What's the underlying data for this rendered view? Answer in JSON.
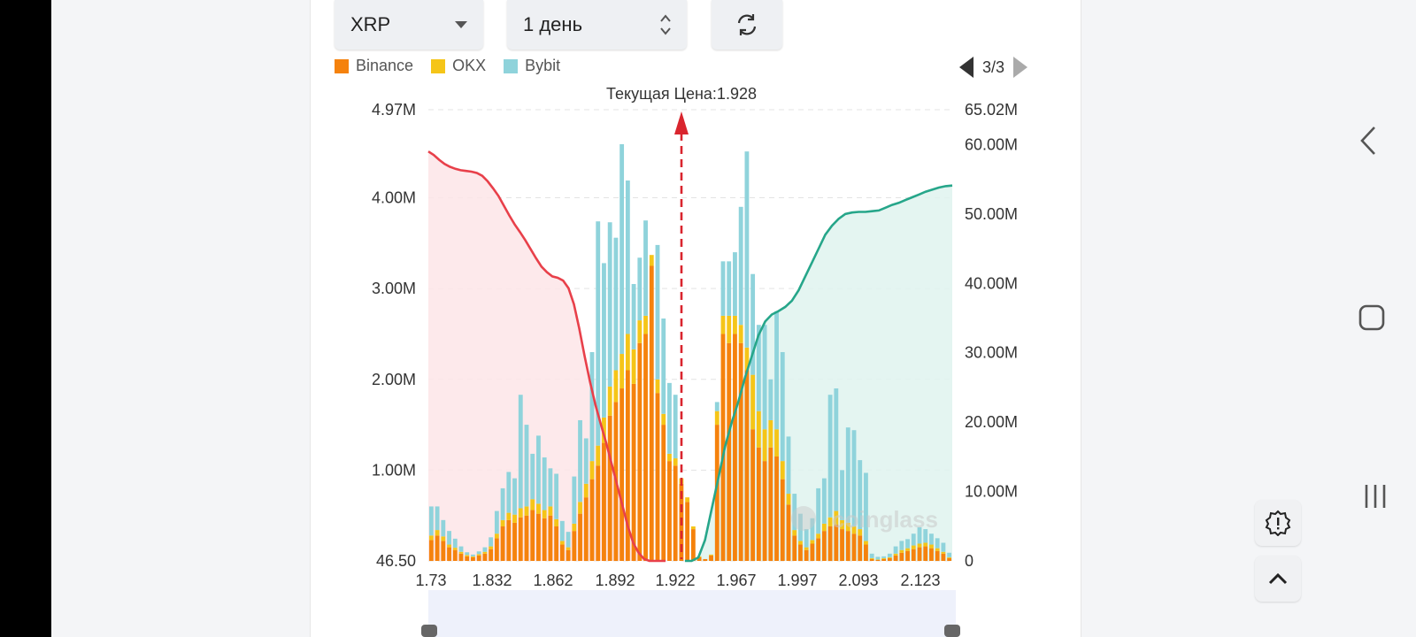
{
  "controls": {
    "coin_select": "XRP",
    "period_select": "1 день"
  },
  "pager": {
    "label": "3/3"
  },
  "watermark": "coinglass",
  "chart_data": {
    "type": "bar",
    "current_price_label": "Текущая Цена:1.928",
    "current_price": 1.928,
    "series": [
      {
        "name": "Binance",
        "color": "#f5820d"
      },
      {
        "name": "OKX",
        "color": "#f5c518"
      },
      {
        "name": "Bybit",
        "color": "#8fd3db"
      }
    ],
    "x_ticks": [
      "1.73",
      "1.832",
      "1.862",
      "1.892",
      "1.922",
      "1.967",
      "1.997",
      "2.093",
      "2.123"
    ],
    "y_left_ticks": [
      "4.97M",
      "4.00M",
      "3.00M",
      "2.00M",
      "1.00M",
      "46.50"
    ],
    "y_left_values": [
      4970000,
      4000000,
      3000000,
      2000000,
      1000000,
      46.5
    ],
    "y_left_range": [
      46.5,
      4970000
    ],
    "y_right_ticks": [
      "65.02M",
      "60.00M",
      "50.00M",
      "40.00M",
      "30.00M",
      "20.00M",
      "10.00M",
      "0"
    ],
    "y_right_values": [
      65020000,
      60000000,
      50000000,
      40000000,
      30000000,
      20000000,
      10000000,
      0
    ],
    "y_right_range": [
      0,
      65020000
    ],
    "bars": {
      "binance": [
        230000,
        280000,
        220000,
        150000,
        120000,
        80000,
        50000,
        40000,
        60000,
        80000,
        130000,
        250000,
        380000,
        450000,
        420000,
        480000,
        500000,
        560000,
        520000,
        470000,
        500000,
        380000,
        180000,
        120000,
        330000,
        520000,
        700000,
        900000,
        1050000,
        1300000,
        1600000,
        1750000,
        1900000,
        2100000,
        1950000,
        2400000,
        2500000,
        3250000,
        1850000,
        1500000,
        1100000,
        1050000,
        850000,
        650000,
        350000,
        40000,
        20000,
        60000,
        1500000,
        2500000,
        2400000,
        2500000,
        2400000,
        2100000,
        1450000,
        1250000,
        1100000,
        1250000,
        1150000,
        900000,
        620000,
        280000,
        180000,
        120000,
        190000,
        250000,
        330000,
        380000,
        400000,
        350000,
        330000,
        300000,
        280000,
        180000,
        20000,
        10000,
        20000,
        30000,
        60000,
        90000,
        110000,
        130000,
        150000,
        160000,
        140000,
        110000,
        80000,
        30000
      ],
      "okx": [
        50000,
        60000,
        50000,
        30000,
        25000,
        20000,
        15000,
        10000,
        15000,
        20000,
        30000,
        50000,
        70000,
        80000,
        90000,
        100000,
        100000,
        120000,
        110000,
        90000,
        100000,
        80000,
        40000,
        30000,
        80000,
        130000,
        150000,
        200000,
        220000,
        280000,
        320000,
        350000,
        380000,
        400000,
        380000,
        250000,
        200000,
        120000,
        150000,
        120000,
        80000,
        80000,
        60000,
        50000,
        30000,
        10000,
        0,
        10000,
        150000,
        200000,
        300000,
        200000,
        200000,
        250000,
        600000,
        400000,
        350000,
        300000,
        300000,
        200000,
        120000,
        60000,
        40000,
        30000,
        40000,
        50000,
        80000,
        100000,
        150000,
        100000,
        90000,
        80000,
        70000,
        40000,
        10000,
        5000,
        10000,
        10000,
        20000,
        30000,
        30000,
        40000,
        40000,
        40000,
        40000,
        30000,
        20000,
        10000
      ],
      "bybit": [
        320000,
        260000,
        180000,
        150000,
        100000,
        60000,
        30000,
        20000,
        30000,
        50000,
        100000,
        250000,
        350000,
        450000,
        400000,
        1250000,
        900000,
        500000,
        750000,
        580000,
        420000,
        500000,
        220000,
        170000,
        520000,
        900000,
        500000,
        1200000,
        2470000,
        1700000,
        1810000,
        1460000,
        2310000,
        1690000,
        720000,
        690000,
        1050000,
        0,
        1480000,
        1050000,
        780000,
        700000,
        0,
        0,
        0,
        0,
        0,
        0,
        100000,
        600000,
        600000,
        700000,
        1300000,
        2160000,
        1110000,
        950000,
        1150000,
        450000,
        1300000,
        1200000,
        630000,
        400000,
        300000,
        200000,
        240000,
        500000,
        500000,
        1350000,
        1350000,
        550000,
        1050000,
        1060000,
        760000,
        750000,
        50000,
        30000,
        20000,
        40000,
        80000,
        100000,
        100000,
        130000,
        180000,
        150000,
        120000,
        110000,
        100000,
        50000
      ]
    },
    "cumulative_short": [
      59000000,
      58500000,
      57800000,
      57200000,
      56800000,
      56500000,
      56300000,
      56200000,
      56100000,
      55900000,
      55500000,
      54700000,
      53700000,
      52600000,
      51200000,
      49800000,
      48500000,
      47400000,
      46200000,
      44900000,
      43600000,
      42400000,
      41600000,
      41000000,
      40800000,
      40400000,
      39300000,
      37000000,
      33500000,
      29500000,
      25800000,
      22500000,
      19700000,
      17000000,
      14000000,
      11000000,
      8000000,
      5000000,
      2600000,
      1200000,
      300000,
      0,
      0,
      0,
      0
    ],
    "cumulative_long": [
      0,
      0,
      500000,
      3000000,
      7500000,
      12000000,
      16500000,
      20000000,
      23000000,
      26500000,
      29500000,
      32500000,
      34500000,
      35500000,
      36000000,
      36600000,
      37500000,
      39000000,
      41000000,
      43000000,
      45000000,
      47000000,
      48300000,
      49300000,
      50000000,
      50200000,
      50300000,
      50300000,
      50400000,
      50500000,
      50900000,
      51300000,
      51600000,
      52000000,
      52400000,
      52800000,
      53200000,
      53500000,
      53800000,
      54000000,
      54100000
    ]
  }
}
